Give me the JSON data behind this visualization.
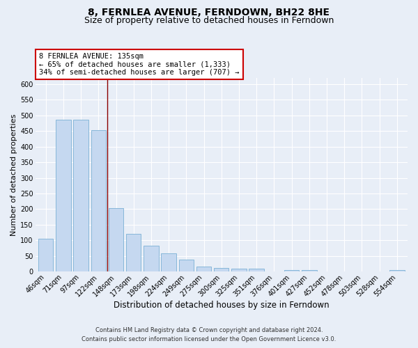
{
  "title": "8, FERNLEA AVENUE, FERNDOWN, BH22 8HE",
  "subtitle": "Size of property relative to detached houses in Ferndown",
  "xlabel": "Distribution of detached houses by size in Ferndown",
  "ylabel": "Number of detached properties",
  "categories": [
    "46sqm",
    "71sqm",
    "97sqm",
    "122sqm",
    "148sqm",
    "173sqm",
    "198sqm",
    "224sqm",
    "249sqm",
    "275sqm",
    "300sqm",
    "325sqm",
    "351sqm",
    "376sqm",
    "401sqm",
    "427sqm",
    "452sqm",
    "478sqm",
    "503sqm",
    "528sqm",
    "554sqm"
  ],
  "values": [
    105,
    487,
    487,
    453,
    202,
    120,
    82,
    57,
    38,
    15,
    12,
    10,
    10,
    0,
    5,
    5,
    0,
    0,
    0,
    0,
    5
  ],
  "bar_color": "#c5d8f0",
  "bar_edge_color": "#7ab0d4",
  "vline_x": 3.5,
  "vline_color": "#8b0000",
  "annotation_text": "8 FERNLEA AVENUE: 135sqm\n← 65% of detached houses are smaller (1,333)\n34% of semi-detached houses are larger (707) →",
  "annotation_box_color": "#ffffff",
  "annotation_box_edge_color": "#cc0000",
  "ylim": [
    0,
    620
  ],
  "yticks": [
    0,
    50,
    100,
    150,
    200,
    250,
    300,
    350,
    400,
    450,
    500,
    550,
    600
  ],
  "background_color": "#e8eef7",
  "plot_bg_color": "#e8eef7",
  "footer_line1": "Contains HM Land Registry data © Crown copyright and database right 2024.",
  "footer_line2": "Contains public sector information licensed under the Open Government Licence v3.0.",
  "title_fontsize": 10,
  "subtitle_fontsize": 9,
  "xlabel_fontsize": 8.5,
  "ylabel_fontsize": 8,
  "tick_fontsize": 7,
  "footer_fontsize": 6,
  "annotation_fontsize": 7.5
}
